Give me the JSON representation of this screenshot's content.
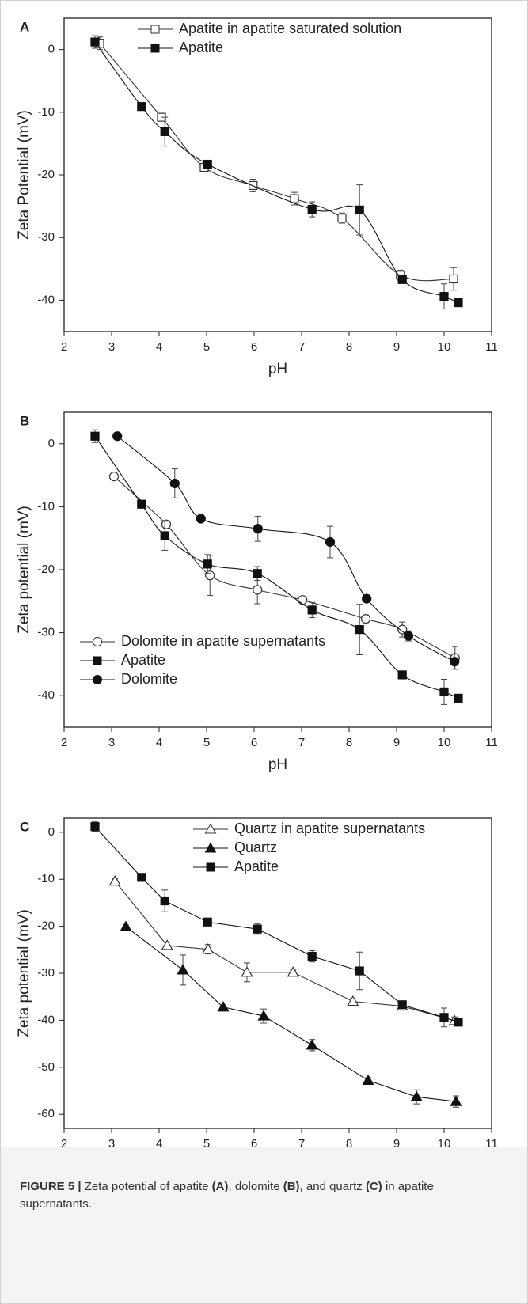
{
  "chart_data": [
    {
      "type": "line",
      "panel_label": "A",
      "xlabel": "pH",
      "ylabel": "Zeta Potential (mV)",
      "smooth": true,
      "legend": "upper right",
      "xlim": [
        2,
        11
      ],
      "xticks": [
        2,
        3,
        4,
        5,
        6,
        7,
        8,
        9,
        10,
        11
      ],
      "ylim": [
        -45,
        5
      ],
      "yticks": [
        0,
        -10,
        -20,
        -30,
        -40
      ],
      "series": [
        {
          "name": "Apatite in apatite saturated solution",
          "marker": "square-open",
          "color": "#333333",
          "x": [
            2.75,
            4.05,
            4.95,
            5.98,
            6.85,
            7.85,
            9.08,
            10.2
          ],
          "values": [
            1,
            -10.8,
            -18.8,
            -21.7,
            -23.8,
            -26.9,
            -36.0,
            -36.6
          ],
          "errors": [
            1,
            0.5,
            0.3,
            1,
            1,
            0.8,
            0.8,
            1.8
          ]
        },
        {
          "name": "Apatite",
          "marker": "square",
          "color": "#111111",
          "x": [
            2.65,
            3.63,
            4.12,
            5.02,
            7.22,
            8.22,
            9.12,
            10.0,
            10.3
          ],
          "values": [
            1.2,
            -9.1,
            -13.1,
            -18.3,
            -25.5,
            -25.6,
            -36.7,
            -39.4,
            -40.4
          ],
          "errors": [
            1,
            0,
            2.3,
            0.5,
            1.2,
            4,
            0.6,
            2,
            0
          ]
        }
      ]
    },
    {
      "type": "line",
      "panel_label": "B",
      "xlabel": "pH",
      "ylabel": "Zeta potential (mV)",
      "smooth": true,
      "legend": "lower left",
      "xlim": [
        2,
        11
      ],
      "xticks": [
        2,
        3,
        4,
        5,
        6,
        7,
        8,
        9,
        10,
        11
      ],
      "ylim": [
        -45,
        5
      ],
      "yticks": [
        0,
        -10,
        -20,
        -30,
        -40
      ],
      "series": [
        {
          "name": "Dolomite in apatite supernatants",
          "marker": "circle-open",
          "color": "#333333",
          "x": [
            3.05,
            4.15,
            5.07,
            6.07,
            7.02,
            8.35,
            9.12,
            10.23
          ],
          "values": [
            -5.2,
            -12.8,
            -20.9,
            -23.2,
            -24.8,
            -27.8,
            -29.5,
            -34.0
          ],
          "errors": [
            0,
            0.6,
            3.2,
            2.2,
            0.4,
            0.6,
            1.2,
            1.8
          ]
        },
        {
          "name": "Apatite",
          "marker": "square",
          "color": "#111111",
          "x": [
            2.65,
            3.63,
            4.12,
            5.02,
            6.07,
            7.22,
            8.22,
            9.12,
            10.0,
            10.3
          ],
          "values": [
            1.2,
            -9.6,
            -14.6,
            -19.1,
            -20.6,
            -26.4,
            -29.5,
            -36.7,
            -39.4,
            -40.4
          ],
          "errors": [
            1,
            0,
            2.3,
            1.5,
            1.1,
            1.2,
            4,
            0.6,
            2,
            0
          ]
        },
        {
          "name": "Dolomite",
          "marker": "circle",
          "color": "#111111",
          "x": [
            3.12,
            4.33,
            4.88,
            6.08,
            7.6,
            8.37,
            9.25,
            10.22
          ],
          "values": [
            1.2,
            -6.3,
            -11.9,
            -13.5,
            -15.6,
            -24.6,
            -30.5,
            -34.6
          ],
          "errors": [
            0.4,
            2.3,
            0,
            2,
            2.5,
            0.5,
            0.8,
            1.2
          ]
        }
      ]
    },
    {
      "type": "line",
      "panel_label": "C",
      "xlabel": "pH",
      "ylabel": "Zeta potential (mV)",
      "smooth": false,
      "legend": "upper right",
      "xlim": [
        2,
        11
      ],
      "xticks": [
        2,
        3,
        4,
        5,
        6,
        7,
        8,
        9,
        10,
        11
      ],
      "ylim": [
        -63,
        3
      ],
      "yticks": [
        0,
        -10,
        -20,
        -30,
        -40,
        -50,
        -60
      ],
      "series": [
        {
          "name": "Quartz in apatite supernatants",
          "marker": "triangle-open",
          "color": "#333333",
          "x": [
            3.07,
            4.17,
            5.03,
            5.85,
            6.82,
            8.08,
            9.12,
            10.22
          ],
          "values": [
            -10.4,
            -24.1,
            -24.9,
            -29.8,
            -29.8,
            -36.0,
            -37.0,
            -40.1
          ],
          "errors": [
            0.5,
            0.8,
            1,
            2,
            0.5,
            0.5,
            0.5,
            0.8
          ]
        },
        {
          "name": "Quartz",
          "marker": "triangle",
          "color": "#111111",
          "x": [
            3.3,
            4.5,
            5.35,
            6.2,
            7.22,
            8.4,
            9.42,
            10.25
          ],
          "values": [
            -20.1,
            -29.3,
            -37.2,
            -39.1,
            -45.3,
            -52.8,
            -56.3,
            -57.3
          ],
          "errors": [
            0.4,
            3.2,
            0.4,
            1.5,
            1.2,
            0.6,
            1.5,
            1.2
          ]
        },
        {
          "name": "Apatite",
          "marker": "square",
          "color": "#111111",
          "x": [
            2.65,
            3.63,
            4.12,
            5.02,
            6.07,
            7.22,
            8.22,
            9.12,
            10.0,
            10.3
          ],
          "values": [
            1.2,
            -9.6,
            -14.6,
            -19.1,
            -20.6,
            -26.4,
            -29.5,
            -36.7,
            -39.4,
            -40.4
          ],
          "errors": [
            1,
            0,
            2.3,
            0.5,
            1.1,
            1.2,
            4,
            0.5,
            2,
            0
          ]
        }
      ]
    }
  ],
  "caption": {
    "label": "FIGURE 5 |",
    "parts": [
      "Zeta potential of apatite",
      "(A)",
      ", dolomite",
      "(B)",
      ", and quartz",
      "(C)",
      "in apatite supernatants."
    ]
  }
}
